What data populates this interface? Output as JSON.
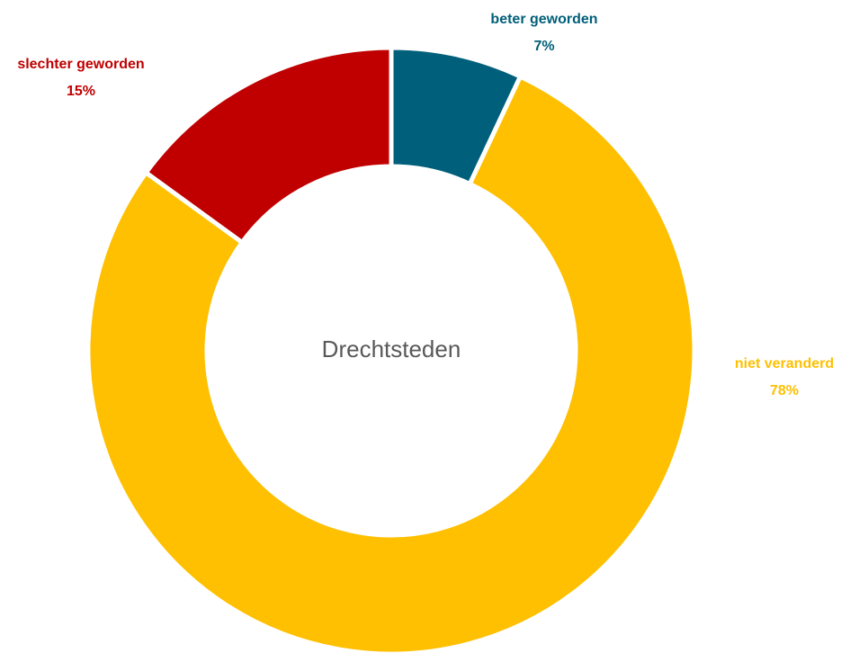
{
  "chart_data": {
    "type": "donut",
    "center_label": "Drechtsteden",
    "categories": [
      "beter geworden",
      "niet veranderd",
      "slechter geworden"
    ],
    "values": [
      7,
      78,
      15
    ],
    "value_labels": [
      "7%",
      "78%",
      "15%"
    ],
    "colors": [
      "#005f7a",
      "#fec000",
      "#c00000"
    ]
  }
}
